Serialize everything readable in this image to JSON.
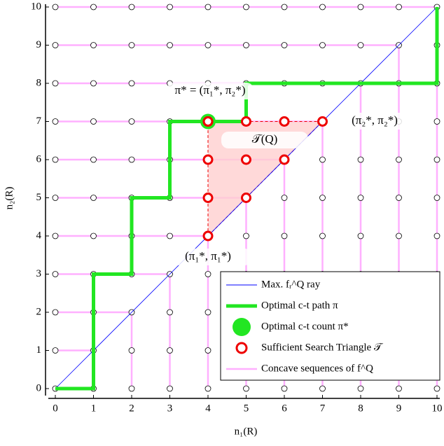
{
  "chart_data": {
    "type": "line",
    "xlabel": "n₁(R)",
    "ylabel": "n₂(R)",
    "xlim": [
      0,
      10
    ],
    "ylim": [
      0,
      10
    ],
    "xticks": [
      0,
      1,
      2,
      3,
      4,
      5,
      6,
      7,
      8,
      9,
      10
    ],
    "yticks": [
      0,
      1,
      2,
      3,
      4,
      5,
      6,
      7,
      8,
      9,
      10
    ],
    "series": [
      {
        "name": "Max. fᵣ^Q ray",
        "type": "line",
        "color": "#0000ff",
        "x": [
          0,
          10
        ],
        "values": [
          0,
          10
        ]
      },
      {
        "name": "Optimal c-t path π",
        "type": "line",
        "color": "#22e622",
        "x": [
          0,
          1,
          1,
          2,
          2,
          3,
          3,
          4,
          5,
          5,
          10,
          10
        ],
        "values": [
          0,
          0,
          3,
          3,
          5,
          5,
          7,
          7,
          7,
          8,
          8,
          10
        ]
      },
      {
        "name": "Optimal c-t count π*",
        "type": "scatter",
        "color": "#22e622",
        "x": [
          4
        ],
        "values": [
          7
        ]
      },
      {
        "name": "Sufficient Search Triangle 𝒯",
        "type": "scatter",
        "color": "#ee0000",
        "x": [
          4,
          5,
          6,
          7,
          4,
          5,
          6,
          4,
          5,
          4
        ],
        "values": [
          7,
          7,
          7,
          7,
          6,
          6,
          6,
          5,
          5,
          4
        ]
      },
      {
        "name": "Concave sequences of f^Q",
        "type": "grid-lines",
        "color": "#ffb0ff"
      }
    ],
    "triangle": {
      "x": [
        4,
        4,
        7
      ],
      "values": [
        4,
        7,
        7
      ],
      "color": "#ffd0d0"
    },
    "annotations": [
      "π* = (π₁*, π₂*)",
      "𝒯(Q)",
      "(π₂*, π₂*)",
      "(π₁*, π₁*)"
    ]
  }
}
